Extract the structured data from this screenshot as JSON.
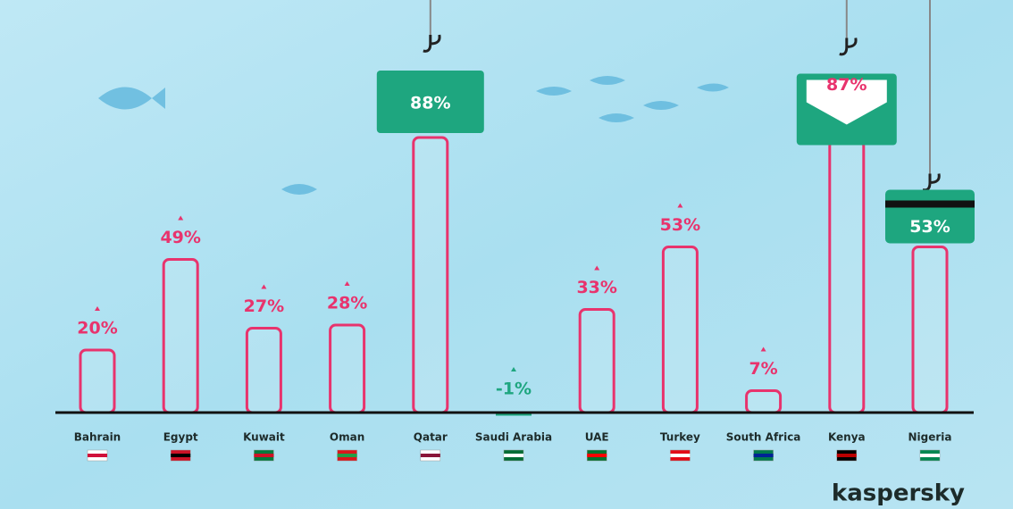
{
  "chart_data": {
    "type": "bar",
    "categories": [
      "Bahrain",
      "Egypt",
      "Kuwait",
      "Oman",
      "Qatar",
      "Saudi Arabia",
      "UAE",
      "Turkey",
      "South Africa",
      "Kenya",
      "Nigeria"
    ],
    "values": [
      20,
      49,
      27,
      28,
      88,
      -1,
      33,
      53,
      7,
      87,
      53
    ],
    "value_labels": [
      "20%",
      "49%",
      "27%",
      "28%",
      "88%",
      "-1%",
      "33%",
      "53%",
      "7%",
      "87%",
      "53%"
    ],
    "color": "#e8336d",
    "negative_color": "#1ea67f",
    "ylim": [
      0,
      100
    ],
    "brand": "kaspersky"
  }
}
